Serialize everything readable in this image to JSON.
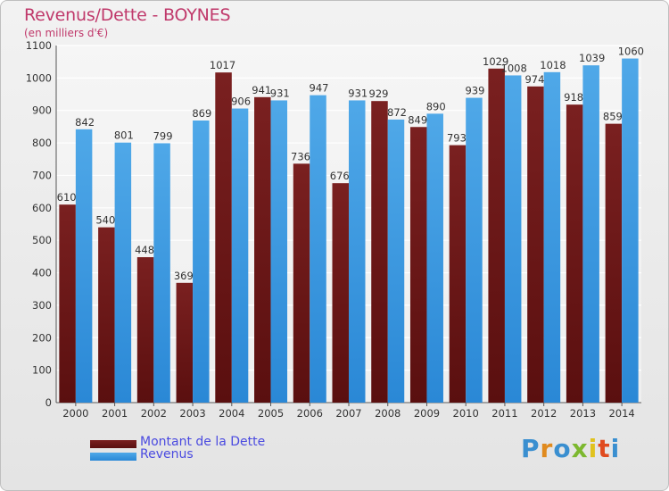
{
  "title": "Revenus/Dette - BOYNES",
  "subtitle": "(en milliers d'€)",
  "logo_text": "Proxiti",
  "colors": {
    "debt": "#7a2020",
    "debt_dark": "#5a0f0f",
    "revenue": "#4fa8e8",
    "revenue_dark": "#2a88d6",
    "title": "#c0396b",
    "legend_text": "#4a4ae0"
  },
  "legend": [
    {
      "label": "Montant de la Dette"
    },
    {
      "label": "Revenus"
    }
  ],
  "chart_data": {
    "type": "bar",
    "categories": [
      "2000",
      "2001",
      "2002",
      "2003",
      "2004",
      "2005",
      "2006",
      "2007",
      "2008",
      "2009",
      "2010",
      "2011",
      "2012",
      "2013",
      "2014"
    ],
    "series": [
      {
        "name": "Montant de la Dette",
        "values": [
          610,
          540,
          448,
          369,
          1017,
          941,
          736,
          676,
          929,
          849,
          793,
          1029,
          974,
          918,
          859
        ]
      },
      {
        "name": "Revenus",
        "values": [
          842,
          801,
          799,
          869,
          906,
          931,
          947,
          931,
          872,
          890,
          939,
          1008,
          1018,
          1039,
          1060
        ]
      }
    ],
    "ylim": [
      0,
      1100
    ],
    "yticks": [
      0,
      100,
      200,
      300,
      400,
      500,
      600,
      700,
      800,
      900,
      1000,
      1100
    ],
    "grid": true,
    "legend_position": "bottom-left"
  }
}
